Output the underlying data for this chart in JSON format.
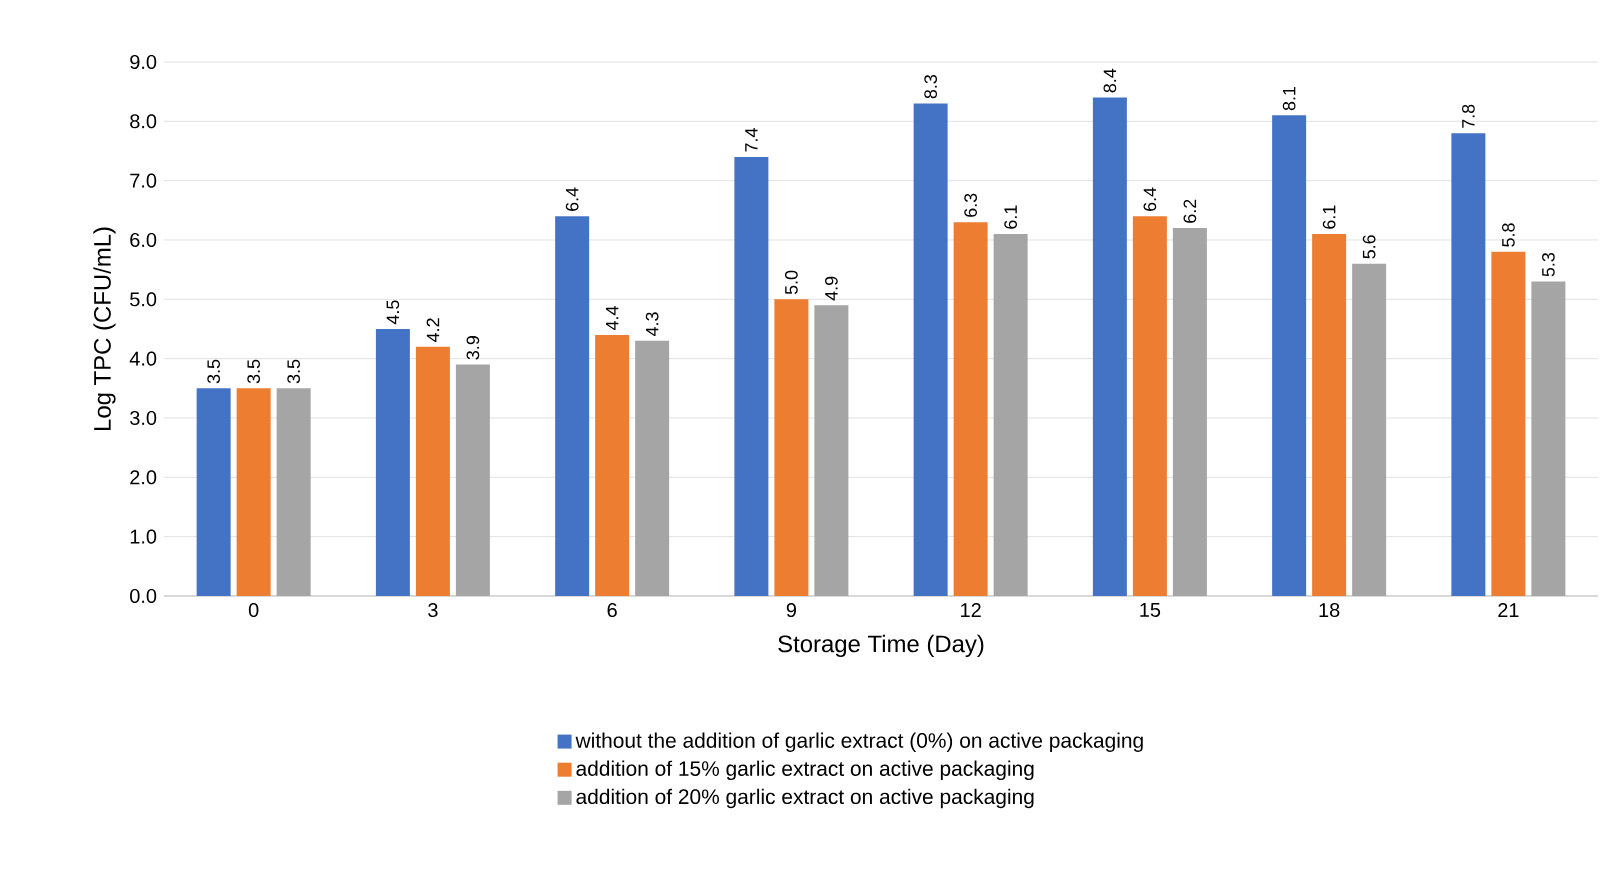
{
  "chart_data": {
    "type": "bar",
    "xlabel": "Storage Time (Day)",
    "ylabel": "Log TPC (CFU/mL)",
    "categories": [
      "0",
      "3",
      "6",
      "9",
      "12",
      "15",
      "18",
      "21"
    ],
    "series": [
      {
        "name": "without the addition of garlic extract (0%) on active packaging",
        "color": "#4472c4",
        "values": [
          3.5,
          4.5,
          6.4,
          7.4,
          8.3,
          8.4,
          8.1,
          7.8
        ],
        "value_labels": [
          "3.5",
          "4.5",
          "6.4",
          "7.4",
          "8.3",
          "8.4",
          "8.1",
          "7.8"
        ]
      },
      {
        "name": "addition of 15% garlic extract on active packaging",
        "color": "#ed7d31",
        "values": [
          3.5,
          4.2,
          4.4,
          5.0,
          6.3,
          6.4,
          6.1,
          5.8
        ],
        "value_labels": [
          "3.5",
          "4.2",
          "4.4",
          "5.0",
          "6.3",
          "6.4",
          "6.1",
          "5.8"
        ]
      },
      {
        "name": "addition of 20% garlic extract on active packaging",
        "color": "#a5a5a5",
        "values": [
          3.5,
          3.9,
          4.3,
          4.9,
          6.1,
          6.2,
          5.6,
          5.3
        ],
        "value_labels": [
          "3.5",
          "3.9",
          "4.3",
          "4.9",
          "6.1",
          "6.2",
          "5.6",
          "5.3"
        ]
      }
    ],
    "ylim": [
      0,
      9
    ],
    "yticks": [
      {
        "value": 0,
        "label": "0.0"
      },
      {
        "value": 1,
        "label": "1.0"
      },
      {
        "value": 2,
        "label": "2.0"
      },
      {
        "value": 3,
        "label": "3.0"
      },
      {
        "value": 4,
        "label": "4.0"
      },
      {
        "value": 5,
        "label": "5.0"
      },
      {
        "value": 6,
        "label": "6.0"
      },
      {
        "value": 7,
        "label": "7.0"
      },
      {
        "value": 8,
        "label": "8.0"
      },
      {
        "value": 9,
        "label": "9.0"
      }
    ],
    "grid": "y",
    "legend": "bottom"
  }
}
